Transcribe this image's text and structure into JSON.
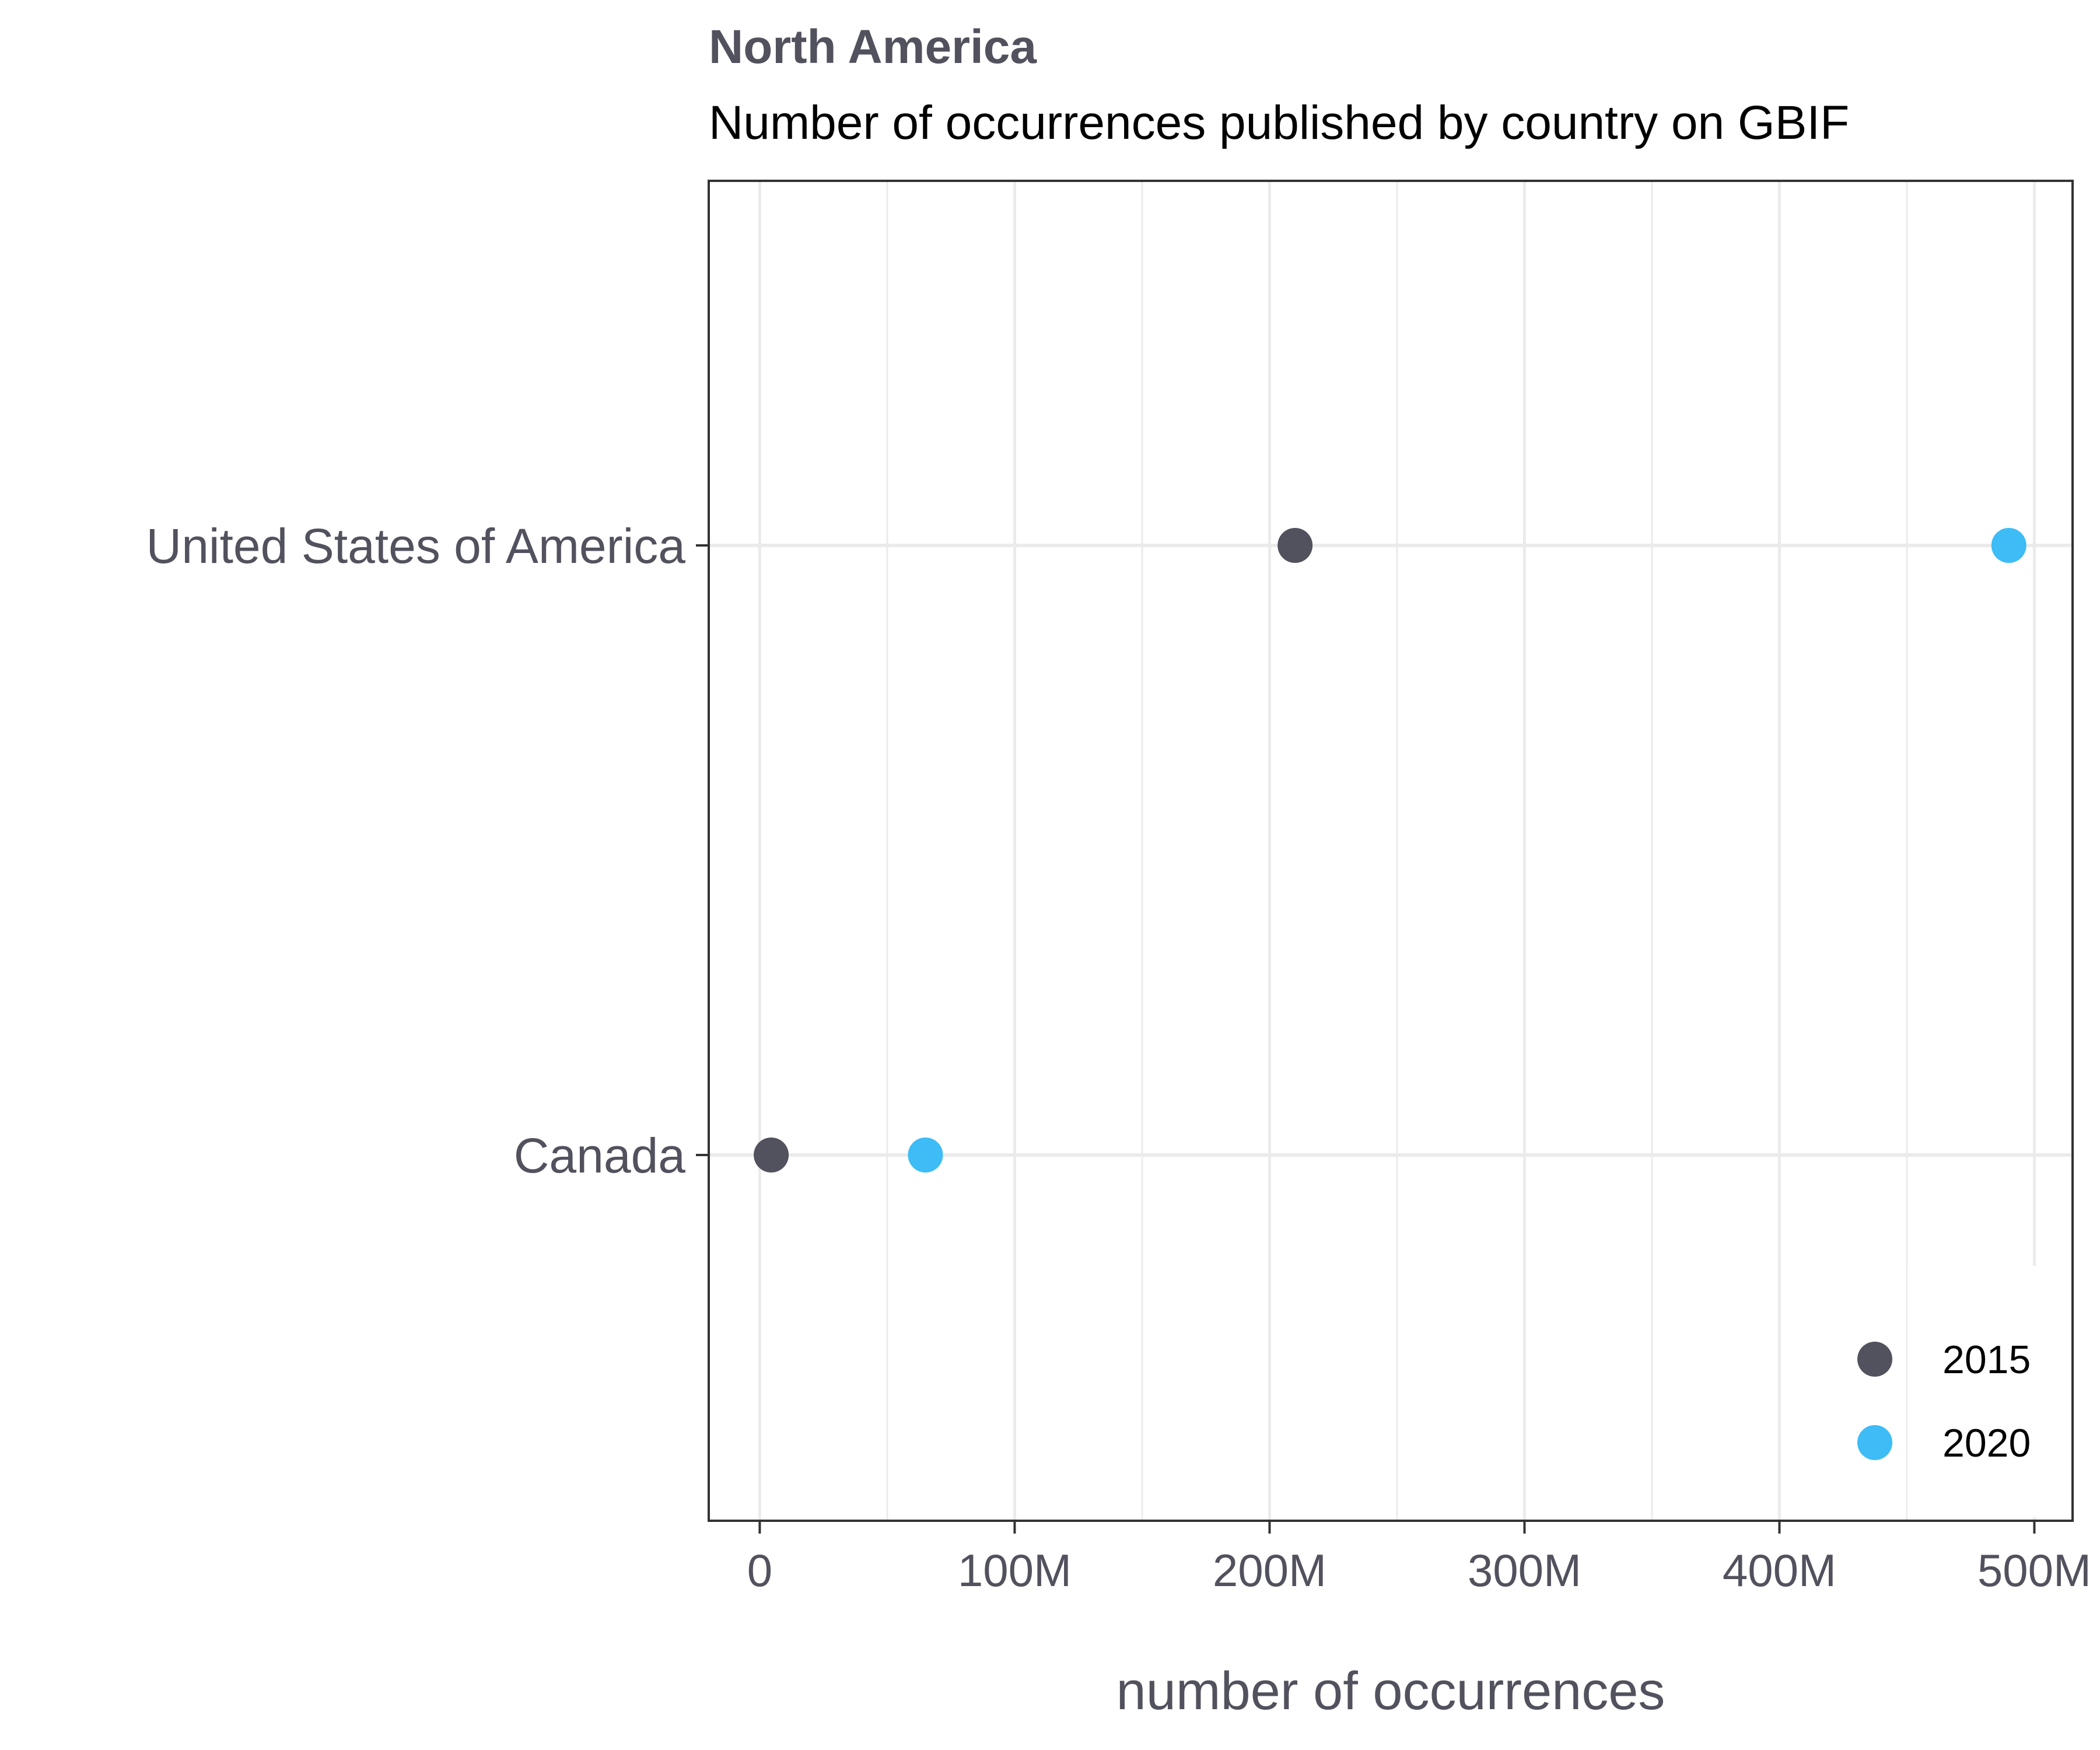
{
  "chart_data": {
    "type": "scatter",
    "title": "North America",
    "subtitle": "Number of occurrences published by country on GBIF",
    "xlabel": "number of occurrences",
    "ylabel": "",
    "categories": [
      "United States of America",
      "Canada"
    ],
    "series": [
      {
        "name": "2015",
        "color": "#52525e",
        "values": [
          210000000,
          4500000
        ]
      },
      {
        "name": "2020",
        "color": "#3dbcf5",
        "values": [
          490000000,
          65000000
        ]
      }
    ],
    "xlim": [
      -20000000,
      515000000
    ],
    "xticks": [
      0,
      100000000,
      200000000,
      300000000,
      400000000,
      500000000
    ],
    "xtick_labels": [
      "0",
      "100M",
      "200M",
      "300M",
      "400M",
      "500M"
    ],
    "grid": true,
    "legend_position": "bottom-right"
  }
}
